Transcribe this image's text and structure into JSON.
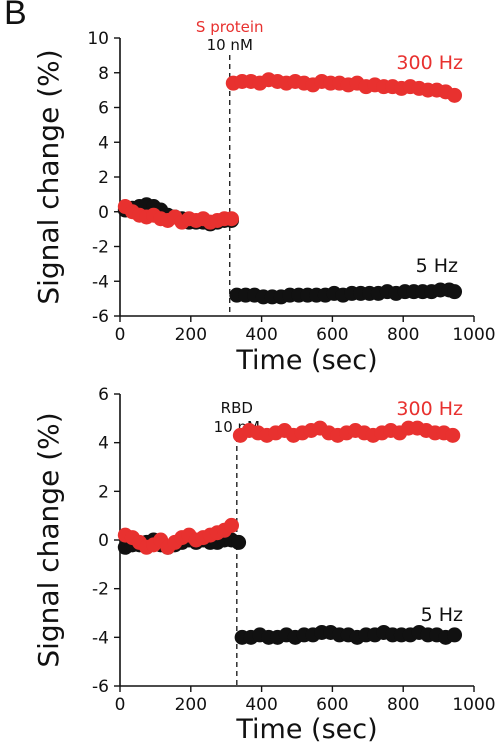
{
  "panel_label": "B",
  "colors": {
    "red": "#e8312f",
    "black": "#111111"
  },
  "chart_data": [
    {
      "type": "scatter",
      "xlabel": "Time (sec)",
      "ylabel": "Signal change (%)",
      "xlim": [
        0,
        1000
      ],
      "ylim": [
        -6,
        10
      ],
      "xticks": [
        0,
        200,
        400,
        600,
        800,
        1000
      ],
      "yticks": [
        -6,
        -4,
        -2,
        0,
        2,
        4,
        6,
        8,
        10
      ],
      "annotation": {
        "x": 310,
        "lines": [
          "S protein",
          "10 nM"
        ],
        "colors": [
          "#e8312f",
          "#111111"
        ]
      },
      "series": [
        {
          "name": "300 Hz",
          "color": "#e8312f",
          "segments": [
            {
              "x": [
                15,
                35,
                55,
                75,
                95,
                115,
                135,
                155,
                175,
                195,
                215,
                235,
                255,
                275,
                295,
                315
              ],
              "y": [
                0.3,
                0.0,
                -0.2,
                -0.3,
                -0.2,
                -0.4,
                -0.5,
                -0.3,
                -0.6,
                -0.4,
                -0.5,
                -0.4,
                -0.6,
                -0.5,
                -0.4,
                -0.4
              ]
            },
            {
              "x": [
                320,
                345,
                370,
                395,
                420,
                445,
                470,
                495,
                520,
                545,
                570,
                595,
                620,
                645,
                670,
                695,
                720,
                745,
                770,
                795,
                820,
                845,
                870,
                895,
                920,
                945
              ],
              "y": [
                7.4,
                7.5,
                7.5,
                7.4,
                7.6,
                7.5,
                7.4,
                7.5,
                7.4,
                7.3,
                7.5,
                7.4,
                7.4,
                7.3,
                7.4,
                7.2,
                7.3,
                7.2,
                7.2,
                7.1,
                7.2,
                7.1,
                7.0,
                7.0,
                6.9,
                6.7
              ]
            }
          ]
        },
        {
          "name": "5 Hz",
          "color": "#111111",
          "segments": [
            {
              "x": [
                15,
                35,
                55,
                75,
                95,
                115,
                135,
                155,
                175,
                195,
                215,
                235,
                255,
                275,
                295,
                315
              ],
              "y": [
                0.1,
                0.2,
                0.3,
                0.4,
                0.3,
                0.1,
                -0.2,
                -0.3,
                -0.4,
                -0.6,
                -0.6,
                -0.6,
                -0.7,
                -0.6,
                -0.5,
                -0.5
              ]
            },
            {
              "x": [
                330,
                355,
                380,
                405,
                430,
                455,
                480,
                505,
                530,
                555,
                580,
                605,
                630,
                655,
                680,
                705,
                730,
                755,
                780,
                805,
                830,
                855,
                880,
                905,
                930,
                945
              ],
              "y": [
                -4.8,
                -4.8,
                -4.8,
                -4.9,
                -4.9,
                -4.9,
                -4.8,
                -4.8,
                -4.8,
                -4.8,
                -4.8,
                -4.7,
                -4.8,
                -4.7,
                -4.7,
                -4.7,
                -4.7,
                -4.6,
                -4.7,
                -4.6,
                -4.6,
                -4.6,
                -4.6,
                -4.5,
                -4.5,
                -4.6
              ]
            }
          ]
        }
      ],
      "labels": [
        {
          "text": "300 Hz",
          "color": "#e8312f"
        },
        {
          "text": "5 Hz",
          "color": "#111111"
        }
      ]
    },
    {
      "type": "scatter",
      "xlabel": "Time (sec)",
      "ylabel": "Signal change (%)",
      "xlim": [
        0,
        1000
      ],
      "ylim": [
        -6,
        6
      ],
      "xticks": [
        0,
        200,
        400,
        600,
        800,
        1000
      ],
      "yticks": [
        -6,
        -4,
        -2,
        0,
        2,
        4,
        6
      ],
      "annotation": {
        "x": 330,
        "lines": [
          "RBD",
          "10 nM"
        ],
        "colors": [
          "#111111",
          "#111111"
        ]
      },
      "series": [
        {
          "name": "300 Hz",
          "color": "#e8312f",
          "segments": [
            {
              "x": [
                15,
                35,
                55,
                75,
                95,
                115,
                135,
                155,
                175,
                195,
                215,
                235,
                255,
                275,
                295,
                315
              ],
              "y": [
                0.2,
                0.1,
                -0.1,
                -0.3,
                -0.2,
                0.0,
                -0.3,
                -0.1,
                0.1,
                0.2,
                0.0,
                0.1,
                0.2,
                0.3,
                0.4,
                0.6
              ]
            },
            {
              "x": [
                340,
                365,
                390,
                415,
                440,
                465,
                490,
                515,
                540,
                565,
                590,
                615,
                640,
                665,
                690,
                715,
                740,
                765,
                790,
                815,
                840,
                865,
                890,
                915,
                940
              ],
              "y": [
                4.3,
                4.5,
                4.4,
                4.3,
                4.4,
                4.5,
                4.3,
                4.4,
                4.5,
                4.6,
                4.4,
                4.3,
                4.4,
                4.5,
                4.4,
                4.3,
                4.4,
                4.5,
                4.4,
                4.6,
                4.6,
                4.5,
                4.4,
                4.4,
                4.3
              ]
            }
          ]
        },
        {
          "name": "5 Hz",
          "color": "#111111",
          "segments": [
            {
              "x": [
                15,
                35,
                55,
                75,
                95,
                115,
                135,
                155,
                175,
                195,
                215,
                235,
                255,
                275,
                295,
                315,
                335
              ],
              "y": [
                -0.3,
                -0.2,
                -0.2,
                -0.1,
                0.0,
                -0.2,
                -0.3,
                -0.2,
                -0.1,
                0.0,
                -0.1,
                0.0,
                -0.1,
                -0.1,
                0.0,
                0.0,
                -0.1
              ]
            },
            {
              "x": [
                345,
                370,
                395,
                420,
                445,
                470,
                495,
                520,
                545,
                570,
                595,
                620,
                645,
                670,
                695,
                720,
                745,
                770,
                795,
                820,
                845,
                870,
                895,
                920,
                945
              ],
              "y": [
                -4.0,
                -4.0,
                -3.9,
                -4.0,
                -4.0,
                -3.9,
                -4.0,
                -3.9,
                -3.9,
                -3.8,
                -3.8,
                -3.9,
                -3.9,
                -4.0,
                -3.9,
                -3.9,
                -3.8,
                -3.9,
                -3.9,
                -3.9,
                -3.8,
                -3.9,
                -3.9,
                -4.0,
                -3.9
              ]
            }
          ]
        }
      ],
      "labels": [
        {
          "text": "300 Hz",
          "color": "#e8312f"
        },
        {
          "text": "5 Hz",
          "color": "#111111"
        }
      ]
    }
  ]
}
